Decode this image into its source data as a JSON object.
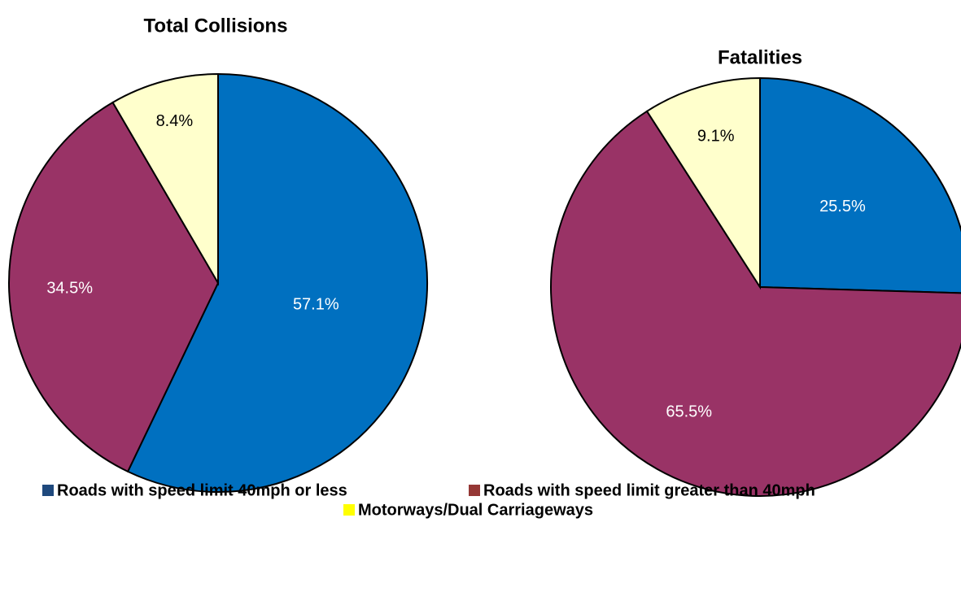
{
  "chart_data": [
    {
      "type": "pie",
      "title": "Total Collisions",
      "categories": [
        "Roads with speed limit 40mph or less",
        "Roads with speed limit greater than 40mph",
        "Motorways/Dual Carriageways"
      ],
      "values": [
        57.1,
        34.5,
        8.4
      ],
      "value_labels": [
        "57.1%",
        "34.5%",
        "8.4%"
      ],
      "colors": [
        "#0070c0",
        "#993366",
        "#ffffcc"
      ]
    },
    {
      "type": "pie",
      "title": "Fatalities",
      "categories": [
        "Roads with speed limit 40mph or less",
        "Roads with speed limit greater than 40mph",
        "Motorways/Dual Carriageways"
      ],
      "values": [
        25.5,
        65.5,
        9.1
      ],
      "value_labels": [
        "25.5%",
        "65.5%",
        "9.1%"
      ],
      "colors": [
        "#0070c0",
        "#993366",
        "#ffffcc"
      ]
    }
  ],
  "legend": {
    "colors": [
      "#1f497d",
      "#953735",
      "#ffff00"
    ]
  }
}
